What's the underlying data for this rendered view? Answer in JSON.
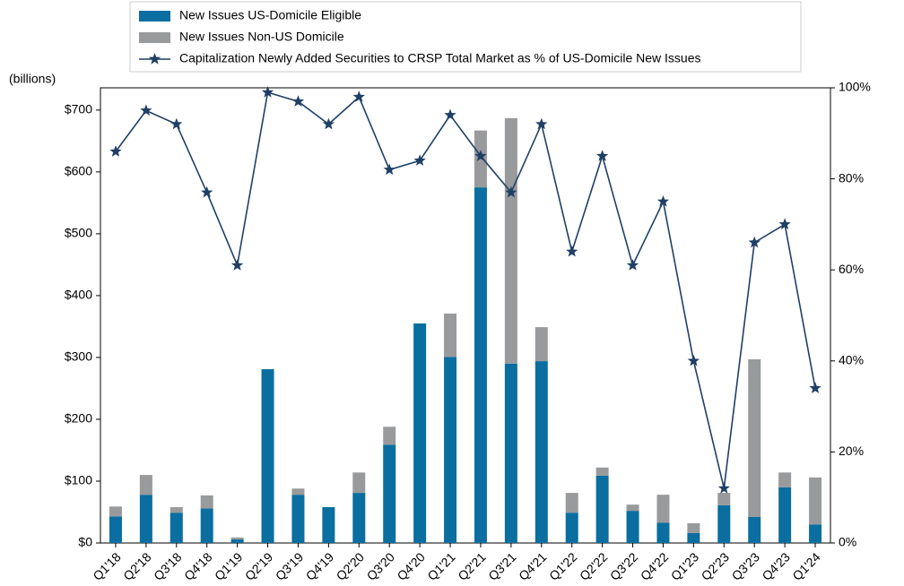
{
  "chart_data": {
    "type": "bar",
    "y_label": "(billions)",
    "categories": [
      "Q1'18",
      "Q2'18",
      "Q3'18",
      "Q4'18",
      "Q1'19",
      "Q2'19",
      "Q3'19",
      "Q4'19",
      "Q2'20",
      "Q3'20",
      "Q4'20",
      "Q1'21",
      "Q2'21",
      "Q3'21",
      "Q4'21",
      "Q1'22",
      "Q2'22",
      "Q3'22",
      "Q4'22",
      "Q1'23",
      "Q2'23",
      "Q3'23",
      "Q4'23",
      "Q1'24"
    ],
    "stacked": true,
    "series": [
      {
        "name": "New Issues US-Domicile Eligible",
        "color": "#0a6ea0",
        "type": "bar",
        "values": [
          43,
          78,
          49,
          56,
          6,
          281,
          78,
          58,
          81,
          159,
          355,
          301,
          575,
          290,
          294,
          49,
          109,
          52,
          33,
          16,
          61,
          42,
          90,
          30
        ]
      },
      {
        "name": "New Issues Non-US Domicile",
        "color": "#999a9c",
        "type": "bar",
        "values": [
          16,
          32,
          9,
          21,
          3,
          0,
          10,
          0,
          33,
          29,
          0,
          70,
          92,
          397,
          55,
          32,
          13,
          10,
          45,
          16,
          20,
          255,
          24,
          76
        ]
      },
      {
        "name": "Capitalization Newly Added Securities to CRSP Total Market as % of US-Domicile New Issues",
        "color": "#1f3f66",
        "type": "line",
        "axis": "y2",
        "marker": "star",
        "values": [
          86,
          95,
          92,
          77,
          61,
          99,
          97,
          92,
          98,
          82,
          84,
          94,
          85,
          77,
          92,
          64,
          85,
          61,
          75,
          40,
          12,
          66,
          70,
          34
        ]
      }
    ],
    "ylim": [
      0,
      736
    ],
    "yticks": [
      {
        "value": 0,
        "label": "$0"
      },
      {
        "value": 100,
        "label": "$100"
      },
      {
        "value": 200,
        "label": "$200"
      },
      {
        "value": 300,
        "label": "$300"
      },
      {
        "value": 400,
        "label": "$400"
      },
      {
        "value": 500,
        "label": "$500"
      },
      {
        "value": 600,
        "label": "$600"
      },
      {
        "value": 700,
        "label": "$700"
      }
    ],
    "y2lim": [
      0,
      100
    ],
    "y2ticks": [
      {
        "value": 0,
        "label": "0%"
      },
      {
        "value": 20,
        "label": "20%"
      },
      {
        "value": 40,
        "label": "40%"
      },
      {
        "value": 60,
        "label": "60%"
      },
      {
        "value": 80,
        "label": "80%"
      },
      {
        "value": 100,
        "label": "100%"
      }
    ],
    "legend": "top",
    "grid": false
  }
}
